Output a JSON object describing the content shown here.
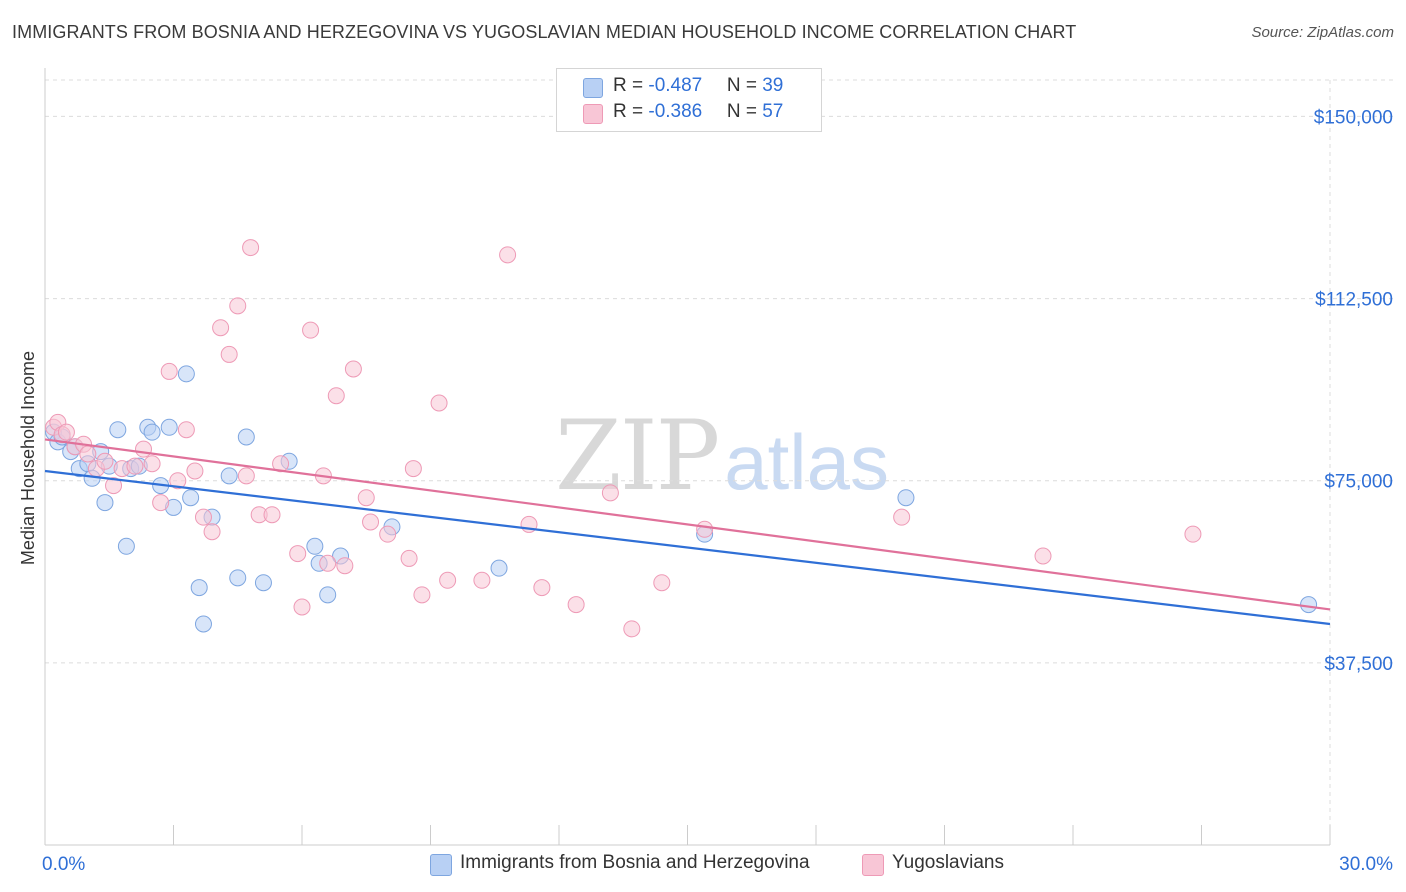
{
  "title": "IMMIGRANTS FROM BOSNIA AND HERZEGOVINA VS YUGOSLAVIAN MEDIAN HOUSEHOLD INCOME CORRELATION CHART",
  "source": "Source: ZipAtlas.com",
  "watermark": {
    "zip": "ZIP",
    "atlas": "atlas"
  },
  "legend": {
    "rows": [
      {
        "r_label": "R = ",
        "r_value": "-0.487",
        "n_label": "N = ",
        "n_value": "39"
      },
      {
        "r_label": "R = ",
        "r_value": "-0.386",
        "n_label": "N = ",
        "n_value": "57"
      }
    ]
  },
  "colors": {
    "blue_fill": "#b8d0f4",
    "blue_stroke": "#7ea6e0",
    "blue_line": "#2f6fd6",
    "pink_fill": "#f8c6d6",
    "pink_stroke": "#ee9ab6",
    "pink_line": "#e0719a",
    "axis_label": "#2f6fd6",
    "grid": "#dcdcdc"
  },
  "chart_data": {
    "type": "scatter",
    "title": "IMMIGRANTS FROM BOSNIA AND HERZEGOVINA VS YUGOSLAVIAN MEDIAN HOUSEHOLD INCOME CORRELATION CHART",
    "xlabel": "",
    "ylabel": "Median Household Income",
    "xlim": [
      0,
      30
    ],
    "ylim": [
      0,
      157500
    ],
    "x_tick_labels": [
      "0.0%",
      "30.0%"
    ],
    "y_ticks": [
      37500,
      75000,
      112500,
      150000
    ],
    "y_tick_labels": [
      "$37,500",
      "$75,000",
      "$112,500",
      "$150,000"
    ],
    "grid": true,
    "legend_position": "top-center",
    "series": [
      {
        "name": "Immigrants from Bosnia and Herzegovina",
        "color": "#7ea6e0",
        "points": [
          [
            0.2,
            85000
          ],
          [
            0.3,
            83000
          ],
          [
            0.4,
            84000
          ],
          [
            0.6,
            81000
          ],
          [
            0.7,
            82000
          ],
          [
            0.8,
            77500
          ],
          [
            1.0,
            78500
          ],
          [
            1.1,
            75500
          ],
          [
            1.3,
            81000
          ],
          [
            1.4,
            70500
          ],
          [
            1.5,
            78000
          ],
          [
            1.7,
            85500
          ],
          [
            1.9,
            61500
          ],
          [
            2.0,
            77500
          ],
          [
            2.2,
            78000
          ],
          [
            2.4,
            86000
          ],
          [
            2.5,
            85000
          ],
          [
            2.7,
            74000
          ],
          [
            2.9,
            86000
          ],
          [
            3.0,
            69500
          ],
          [
            3.3,
            97000
          ],
          [
            3.4,
            71500
          ],
          [
            3.6,
            53000
          ],
          [
            3.7,
            45500
          ],
          [
            3.9,
            67500
          ],
          [
            4.3,
            76000
          ],
          [
            4.5,
            55000
          ],
          [
            4.7,
            84000
          ],
          [
            5.1,
            54000
          ],
          [
            5.7,
            79000
          ],
          [
            6.3,
            61500
          ],
          [
            6.4,
            58000
          ],
          [
            6.6,
            51500
          ],
          [
            6.9,
            59500
          ],
          [
            8.1,
            65500
          ],
          [
            10.6,
            57000
          ],
          [
            15.4,
            64000
          ],
          [
            20.1,
            71500
          ],
          [
            29.5,
            49500
          ]
        ]
      },
      {
        "name": "Yugoslavians",
        "color": "#ee9ab6",
        "points": [
          [
            0.2,
            86000
          ],
          [
            0.3,
            87000
          ],
          [
            0.4,
            84500
          ],
          [
            0.5,
            85000
          ],
          [
            0.7,
            82000
          ],
          [
            0.9,
            82500
          ],
          [
            1.0,
            80500
          ],
          [
            1.2,
            77500
          ],
          [
            1.4,
            79000
          ],
          [
            1.6,
            74000
          ],
          [
            1.8,
            77500
          ],
          [
            2.1,
            78000
          ],
          [
            2.3,
            81500
          ],
          [
            2.5,
            78500
          ],
          [
            2.7,
            70500
          ],
          [
            2.9,
            97500
          ],
          [
            3.1,
            75000
          ],
          [
            3.3,
            85500
          ],
          [
            3.5,
            77000
          ],
          [
            3.7,
            67500
          ],
          [
            3.9,
            64500
          ],
          [
            4.1,
            106500
          ],
          [
            4.3,
            101000
          ],
          [
            4.5,
            111000
          ],
          [
            4.7,
            76000
          ],
          [
            4.8,
            123000
          ],
          [
            5.0,
            68000
          ],
          [
            5.3,
            68000
          ],
          [
            5.5,
            78500
          ],
          [
            5.9,
            60000
          ],
          [
            6.0,
            49000
          ],
          [
            6.2,
            106000
          ],
          [
            6.5,
            76000
          ],
          [
            6.6,
            58000
          ],
          [
            6.8,
            92500
          ],
          [
            7.0,
            57500
          ],
          [
            7.2,
            98000
          ],
          [
            7.5,
            71500
          ],
          [
            7.6,
            66500
          ],
          [
            8.0,
            64000
          ],
          [
            8.5,
            59000
          ],
          [
            8.6,
            77500
          ],
          [
            8.8,
            51500
          ],
          [
            9.2,
            91000
          ],
          [
            9.4,
            54500
          ],
          [
            10.2,
            54500
          ],
          [
            10.8,
            121500
          ],
          [
            11.3,
            66000
          ],
          [
            11.6,
            53000
          ],
          [
            12.4,
            49500
          ],
          [
            13.2,
            72500
          ],
          [
            13.7,
            44500
          ],
          [
            14.4,
            54000
          ],
          [
            15.4,
            65000
          ],
          [
            20.0,
            67500
          ],
          [
            23.3,
            59500
          ],
          [
            26.8,
            64000
          ]
        ]
      }
    ],
    "trend_lines": [
      {
        "series": "Immigrants from Bosnia and Herzegovina",
        "start": [
          0,
          77000
        ],
        "end": [
          30,
          45500
        ]
      },
      {
        "series": "Yugoslavians",
        "start": [
          0,
          83500
        ],
        "end": [
          30,
          48500
        ]
      }
    ]
  }
}
